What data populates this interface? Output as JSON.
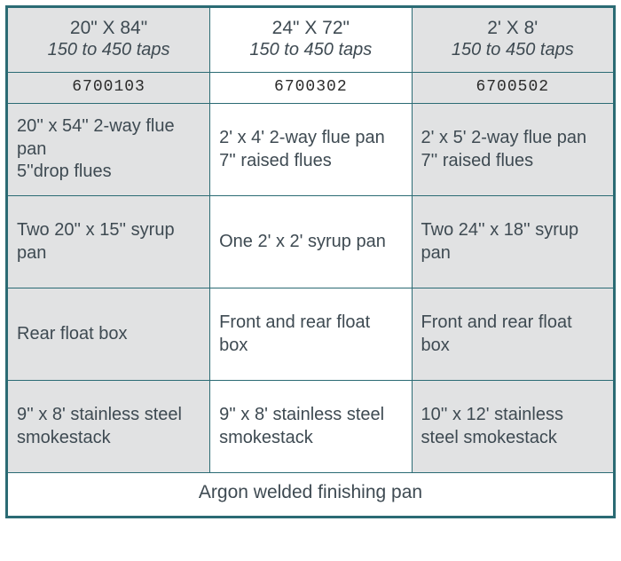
{
  "table": {
    "border_color": "#2b6b74",
    "columns": [
      {
        "size": "20\" X 84\"",
        "taps": "150 to 450 taps",
        "sku": "6700103",
        "bg": "#e1e2e3"
      },
      {
        "size": "24\" X 72\"",
        "taps": "150 to 450 taps",
        "sku": "6700302",
        "bg": "#ffffff"
      },
      {
        "size": "2' X 8'",
        "taps": "150 to 450 taps",
        "sku": "6700502",
        "bg": "#e1e2e3"
      }
    ],
    "rows": [
      [
        "20'' x 54'' 2-way flue pan\n5''drop flues",
        "2' x 4' 2-way flue pan\n7'' raised flues",
        "2' x 5' 2-way flue pan\n7'' raised flues"
      ],
      [
        "Two 20'' x 15'' syrup pan",
        "One 2' x 2' syrup pan",
        "Two 24'' x 18'' syrup pan"
      ],
      [
        "Rear float box",
        "Front and rear float box",
        "Front and rear float box"
      ],
      [
        "9'' x 8' stainless steel smokestack",
        "9'' x 8' stainless steel smokestack",
        "10'' x 12' stainless steel smokestack"
      ]
    ],
    "footer": "Argon welded finishing pan",
    "footer_bg": "#ffffff"
  }
}
